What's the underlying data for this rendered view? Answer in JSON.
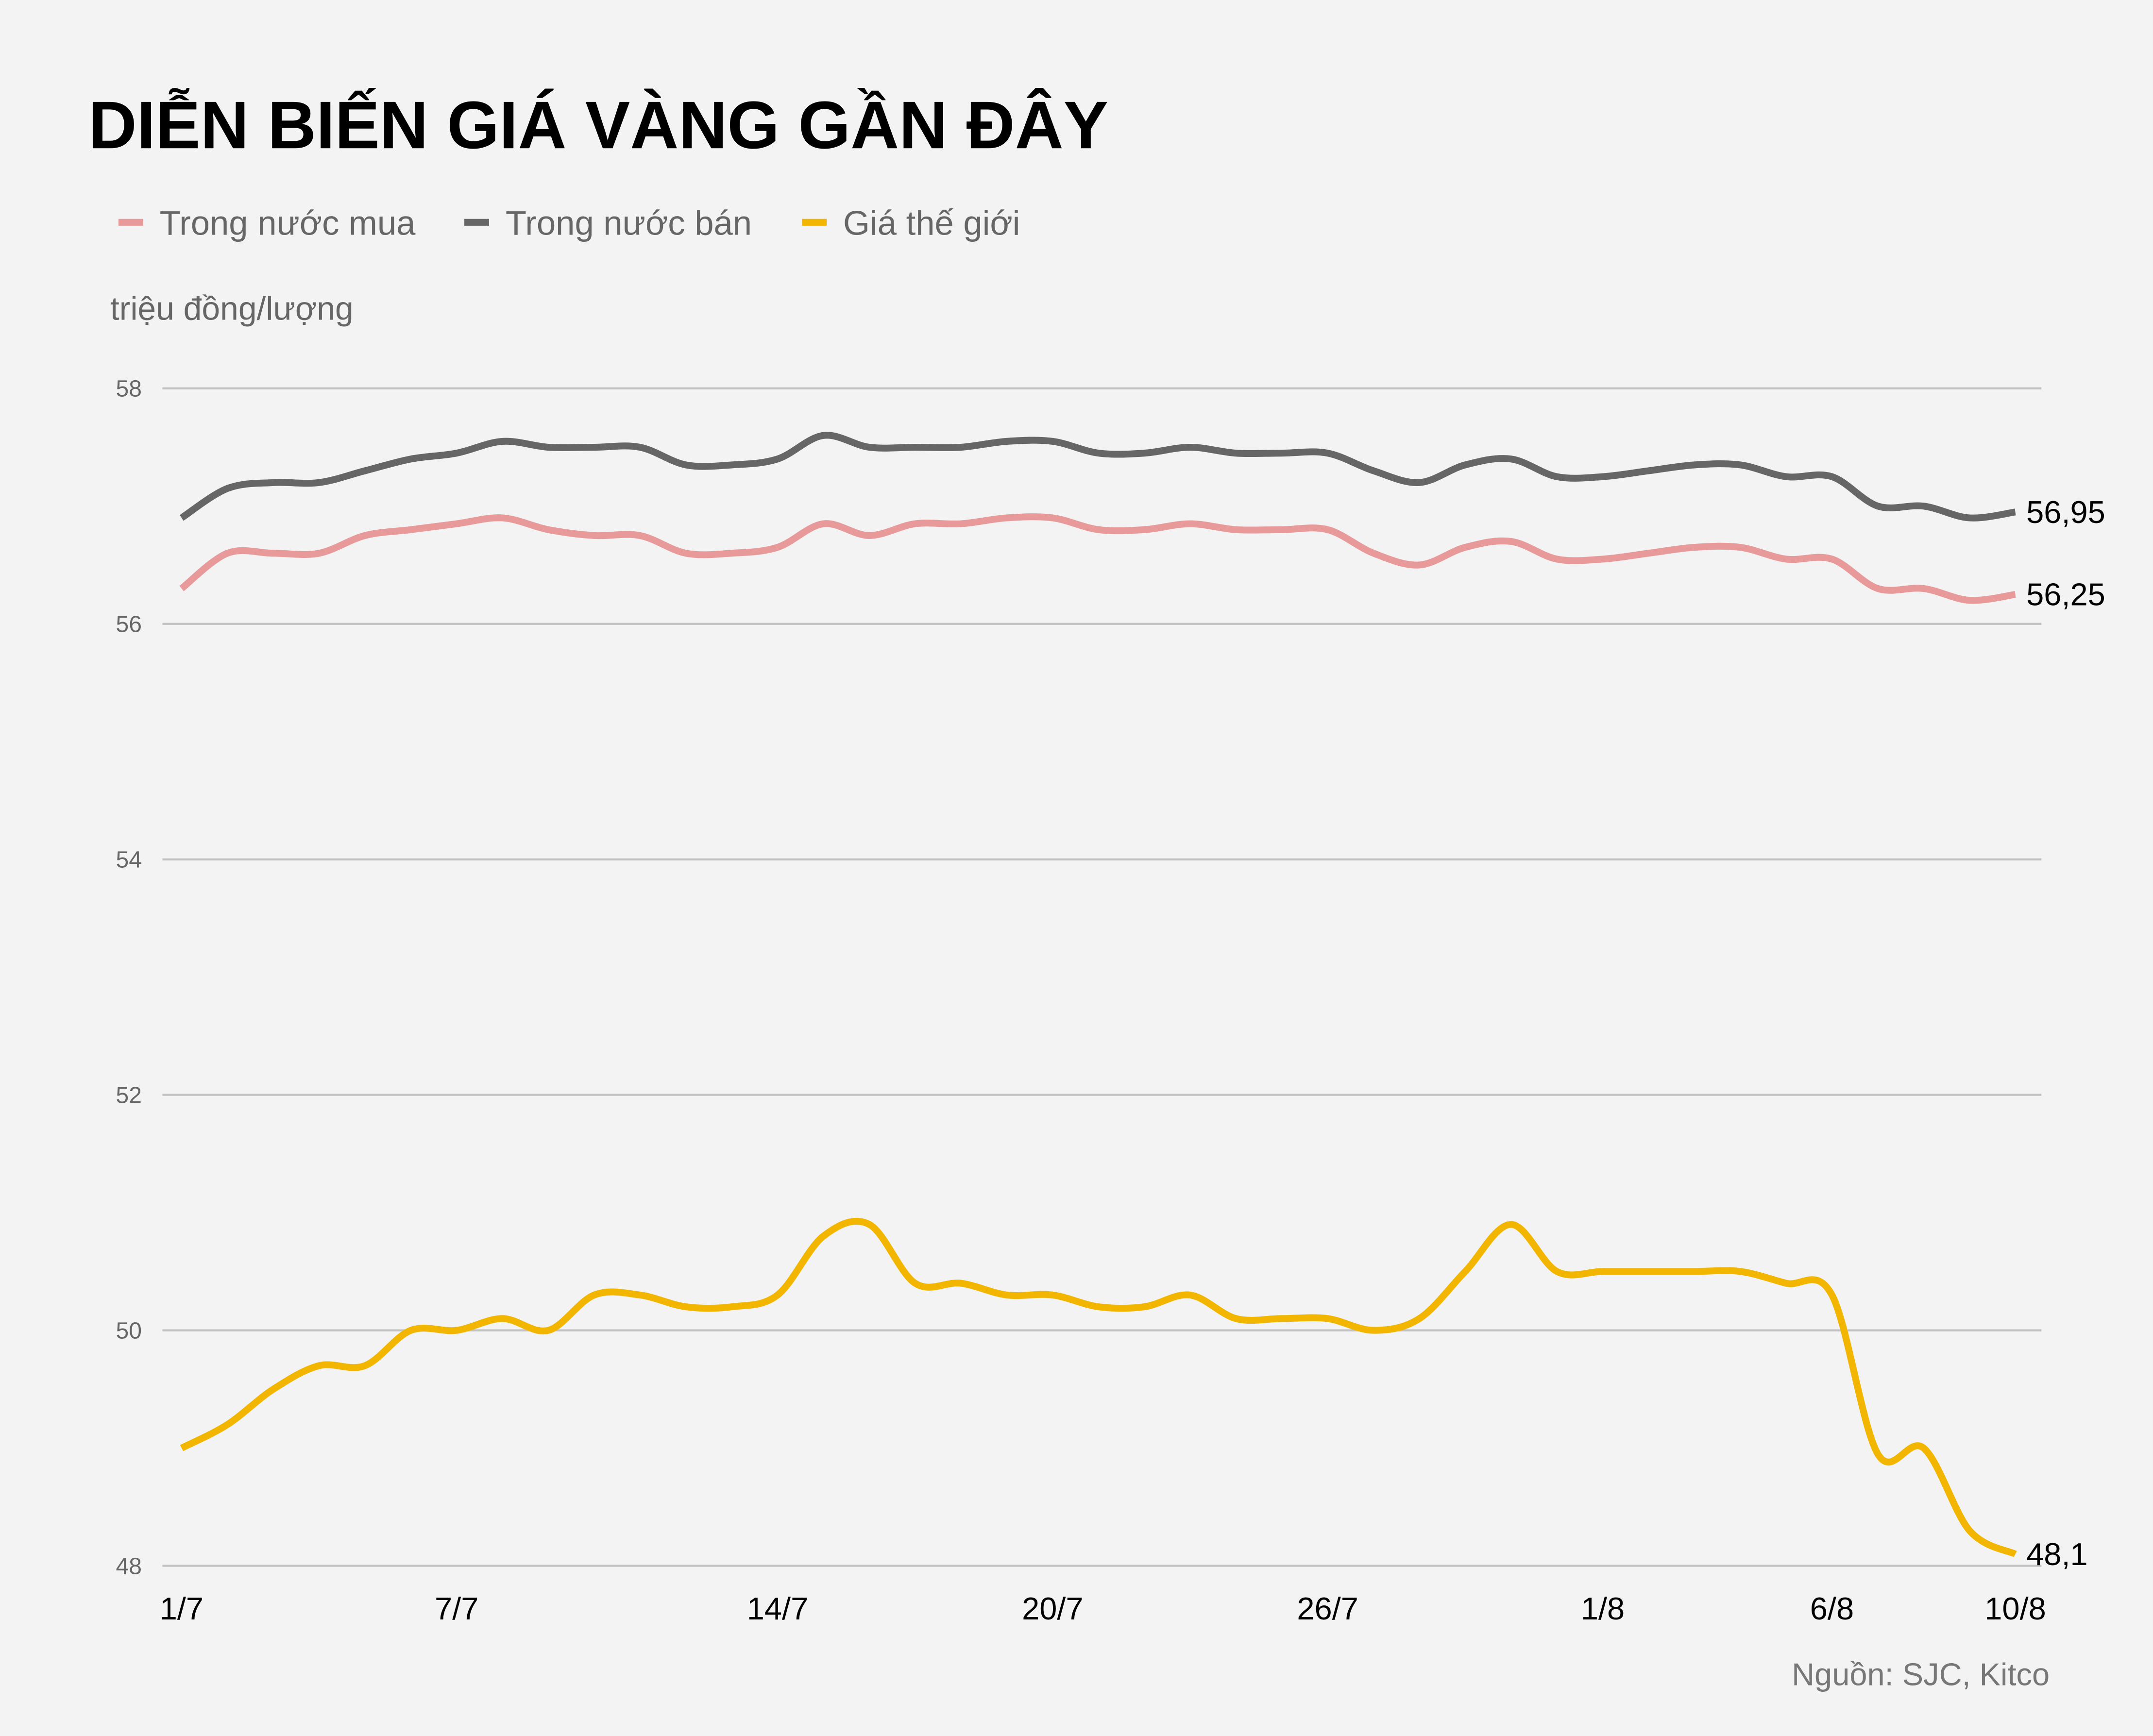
{
  "chart_data": {
    "type": "line",
    "title": "DIỄN BIẾN GIÁ VÀNG GẦN ĐÂY",
    "ylabel": "triệu đồng/lượng",
    "source": "Nguồn: SJC, Kitco",
    "ylim": [
      48,
      58
    ],
    "yticks": [
      "58",
      "56",
      "54",
      "52",
      "50",
      "48"
    ],
    "ytick_values": [
      58,
      56,
      54,
      52,
      50,
      48
    ],
    "grid": true,
    "legend_position": "top-left",
    "x": [
      "1/7",
      "2/7",
      "3/7",
      "4/7",
      "5/7",
      "6/7",
      "7/7",
      "8/7",
      "9/7",
      "10/7",
      "11/7",
      "12/7",
      "13/7",
      "14/7",
      "15/7",
      "16/7",
      "17/7",
      "18/7",
      "19/7",
      "20/7",
      "21/7",
      "22/7",
      "23/7",
      "24/7",
      "25/7",
      "26/7",
      "27/7",
      "28/7",
      "29/7",
      "30/7",
      "31/7",
      "1/8",
      "2/8",
      "3/8",
      "4/8",
      "5/8",
      "6/8",
      "7/8",
      "8/8",
      "9/8",
      "10/8"
    ],
    "xticks": [
      "1/7",
      "7/7",
      "14/7",
      "20/7",
      "26/7",
      "1/8",
      "6/8",
      "10/8"
    ],
    "series": [
      {
        "name": "Trong nước mua",
        "color": "#e89a9a",
        "end_label": "56,25",
        "values": [
          56.3,
          56.6,
          56.6,
          56.6,
          56.75,
          56.8,
          56.85,
          56.9,
          56.8,
          56.75,
          56.75,
          56.6,
          56.6,
          56.65,
          56.85,
          56.75,
          56.85,
          56.85,
          56.9,
          56.9,
          56.8,
          56.8,
          56.85,
          56.8,
          56.8,
          56.8,
          56.6,
          56.5,
          56.65,
          56.7,
          56.55,
          56.55,
          56.6,
          56.65,
          56.65,
          56.55,
          56.55,
          56.3,
          56.3,
          56.2,
          56.25
        ]
      },
      {
        "name": "Trong nước bán",
        "color": "#666666",
        "end_label": "56,95",
        "values": [
          56.9,
          57.15,
          57.2,
          57.2,
          57.3,
          57.4,
          57.45,
          57.55,
          57.5,
          57.5,
          57.5,
          57.35,
          57.35,
          57.4,
          57.6,
          57.5,
          57.5,
          57.5,
          57.55,
          57.55,
          57.45,
          57.45,
          57.5,
          57.45,
          57.45,
          57.45,
          57.3,
          57.2,
          57.35,
          57.4,
          57.25,
          57.25,
          57.3,
          57.35,
          57.35,
          57.25,
          57.25,
          57.0,
          57.0,
          56.9,
          56.95
        ]
      },
      {
        "name": "Giá thế giới",
        "color": "#f2b600",
        "end_label": "48,1",
        "values": [
          49.0,
          49.2,
          49.5,
          49.7,
          49.7,
          50.0,
          50.0,
          50.1,
          50.0,
          50.3,
          50.3,
          50.2,
          50.2,
          50.3,
          50.8,
          50.9,
          50.4,
          50.4,
          50.3,
          50.3,
          50.2,
          50.2,
          50.3,
          50.1,
          50.1,
          50.1,
          50.0,
          50.1,
          50.5,
          50.9,
          50.5,
          50.5,
          50.5,
          50.5,
          50.5,
          50.4,
          50.3,
          48.95,
          49.0,
          48.3,
          48.1
        ]
      }
    ]
  }
}
